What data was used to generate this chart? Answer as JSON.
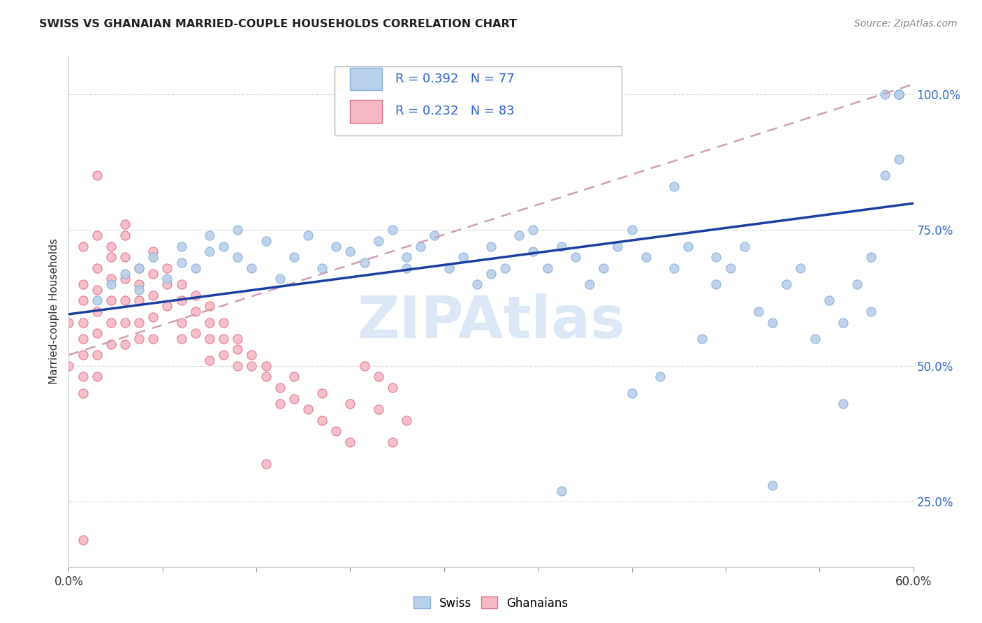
{
  "title": "SWISS VS GHANAIAN MARRIED-COUPLE HOUSEHOLDS CORRELATION CHART",
  "source": "Source: ZipAtlas.com",
  "ylabel": "Married-couple Households",
  "ytick_labels": [
    "25.0%",
    "50.0%",
    "75.0%",
    "100.0%"
  ],
  "ytick_values": [
    0.25,
    0.5,
    0.75,
    1.0
  ],
  "xlim": [
    0.0,
    0.6
  ],
  "ylim": [
    0.13,
    1.07
  ],
  "legend_swiss_R": "R = 0.392",
  "legend_swiss_N": "N = 77",
  "legend_ghana_R": "R = 0.232",
  "legend_ghana_N": "N = 83",
  "swiss_fill": "#b8d0ea",
  "swiss_edge": "#88b0d8",
  "ghana_fill": "#f5b8c4",
  "ghana_edge": "#e07090",
  "trend_swiss_color": "#1a3fa0",
  "trend_ghana_color": "#d0a0b0",
  "background_color": "#ffffff",
  "watermark_text": "ZIPAtlas",
  "watermark_color": "#dce8f5",
  "grid_color": "#d8d8d8",
  "ytick_color": "#3366cc",
  "title_color": "#222222",
  "source_color": "#888888",
  "swiss_x": [
    0.02,
    0.03,
    0.04,
    0.05,
    0.05,
    0.06,
    0.07,
    0.08,
    0.08,
    0.09,
    0.1,
    0.1,
    0.11,
    0.12,
    0.12,
    0.13,
    0.14,
    0.15,
    0.16,
    0.17,
    0.18,
    0.19,
    0.2,
    0.21,
    0.22,
    0.23,
    0.24,
    0.24,
    0.25,
    0.26,
    0.27,
    0.28,
    0.29,
    0.3,
    0.3,
    0.31,
    0.32,
    0.33,
    0.33,
    0.34,
    0.35,
    0.36,
    0.37,
    0.38,
    0.39,
    0.4,
    0.41,
    0.42,
    0.43,
    0.44,
    0.45,
    0.46,
    0.46,
    0.47,
    0.48,
    0.49,
    0.5,
    0.51,
    0.52,
    0.53,
    0.54,
    0.55,
    0.56,
    0.57,
    0.57,
    0.58,
    0.59,
    0.59,
    0.59,
    0.35,
    0.4,
    0.43,
    0.5,
    0.55,
    0.58,
    0.59,
    0.59
  ],
  "swiss_y": [
    0.62,
    0.65,
    0.67,
    0.64,
    0.68,
    0.7,
    0.66,
    0.69,
    0.72,
    0.68,
    0.71,
    0.74,
    0.72,
    0.7,
    0.75,
    0.68,
    0.73,
    0.66,
    0.7,
    0.74,
    0.68,
    0.72,
    0.71,
    0.69,
    0.73,
    0.75,
    0.7,
    0.68,
    0.72,
    0.74,
    0.68,
    0.7,
    0.65,
    0.67,
    0.72,
    0.68,
    0.74,
    0.71,
    0.75,
    0.68,
    0.72,
    0.7,
    0.65,
    0.68,
    0.72,
    0.75,
    0.7,
    0.48,
    0.68,
    0.72,
    0.55,
    0.65,
    0.7,
    0.68,
    0.72,
    0.6,
    0.58,
    0.65,
    0.68,
    0.55,
    0.62,
    0.58,
    0.65,
    0.7,
    0.6,
    0.85,
    0.88,
    1.0,
    1.0,
    0.27,
    0.45,
    0.83,
    0.28,
    0.43,
    1.0,
    1.0,
    1.0
  ],
  "ghana_x": [
    0.0,
    0.0,
    0.01,
    0.01,
    0.01,
    0.01,
    0.01,
    0.01,
    0.01,
    0.02,
    0.02,
    0.02,
    0.02,
    0.02,
    0.02,
    0.03,
    0.03,
    0.03,
    0.03,
    0.03,
    0.04,
    0.04,
    0.04,
    0.04,
    0.04,
    0.04,
    0.05,
    0.05,
    0.05,
    0.05,
    0.06,
    0.06,
    0.06,
    0.06,
    0.07,
    0.07,
    0.08,
    0.08,
    0.08,
    0.09,
    0.09,
    0.1,
    0.1,
    0.1,
    0.11,
    0.11,
    0.12,
    0.12,
    0.13,
    0.14,
    0.15,
    0.15,
    0.16,
    0.17,
    0.18,
    0.19,
    0.2,
    0.21,
    0.22,
    0.23,
    0.01,
    0.02,
    0.03,
    0.04,
    0.05,
    0.06,
    0.07,
    0.08,
    0.09,
    0.1,
    0.11,
    0.12,
    0.13,
    0.14,
    0.16,
    0.18,
    0.2,
    0.22,
    0.24,
    0.14,
    0.01,
    0.02,
    0.23
  ],
  "ghana_y": [
    0.58,
    0.5,
    0.65,
    0.62,
    0.58,
    0.55,
    0.52,
    0.48,
    0.45,
    0.68,
    0.64,
    0.6,
    0.56,
    0.52,
    0.48,
    0.7,
    0.66,
    0.62,
    0.58,
    0.54,
    0.74,
    0.7,
    0.66,
    0.62,
    0.58,
    0.54,
    0.65,
    0.62,
    0.58,
    0.55,
    0.67,
    0.63,
    0.59,
    0.55,
    0.65,
    0.61,
    0.62,
    0.58,
    0.55,
    0.6,
    0.56,
    0.58,
    0.55,
    0.51,
    0.55,
    0.52,
    0.53,
    0.5,
    0.5,
    0.48,
    0.46,
    0.43,
    0.44,
    0.42,
    0.4,
    0.38,
    0.36,
    0.5,
    0.48,
    0.46,
    0.72,
    0.74,
    0.72,
    0.76,
    0.68,
    0.71,
    0.68,
    0.65,
    0.63,
    0.61,
    0.58,
    0.55,
    0.52,
    0.5,
    0.48,
    0.45,
    0.43,
    0.42,
    0.4,
    0.32,
    0.18,
    0.85,
    0.36
  ]
}
